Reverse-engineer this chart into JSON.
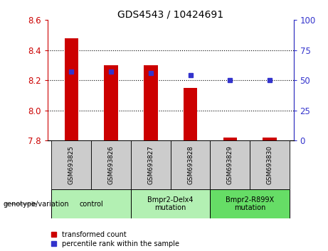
{
  "title": "GDS4543 / 10424691",
  "samples": [
    "GSM693825",
    "GSM693826",
    "GSM693827",
    "GSM693828",
    "GSM693829",
    "GSM693830"
  ],
  "red_values": [
    8.48,
    8.3,
    8.3,
    8.15,
    7.82,
    7.82
  ],
  "blue_values": [
    57,
    57,
    56,
    54,
    50,
    50
  ],
  "y_min": 7.8,
  "y_max": 8.6,
  "y_ticks": [
    7.8,
    8.0,
    8.2,
    8.4,
    8.6
  ],
  "y2_ticks": [
    0,
    25,
    50,
    75,
    100
  ],
  "groups": [
    {
      "label": "control",
      "indices": [
        0,
        1
      ],
      "color": "#b3f0b3"
    },
    {
      "label": "Bmpr2-Delx4\nmutation",
      "indices": [
        2,
        3
      ],
      "color": "#b3f0b3"
    },
    {
      "label": "Bmpr2-R899X\nmutation",
      "indices": [
        4,
        5
      ],
      "color": "#66dd66"
    }
  ],
  "bar_color": "#cc0000",
  "dot_color": "#3333cc",
  "bar_width": 0.35,
  "background_color": "#ffffff",
  "tick_label_color_left": "#cc0000",
  "tick_label_color_right": "#3333cc",
  "legend_red_label": "transformed count",
  "legend_blue_label": "percentile rank within the sample",
  "genotype_label": "genotype/variation",
  "sample_box_color": "#cccccc",
  "grid_color": "#000000"
}
